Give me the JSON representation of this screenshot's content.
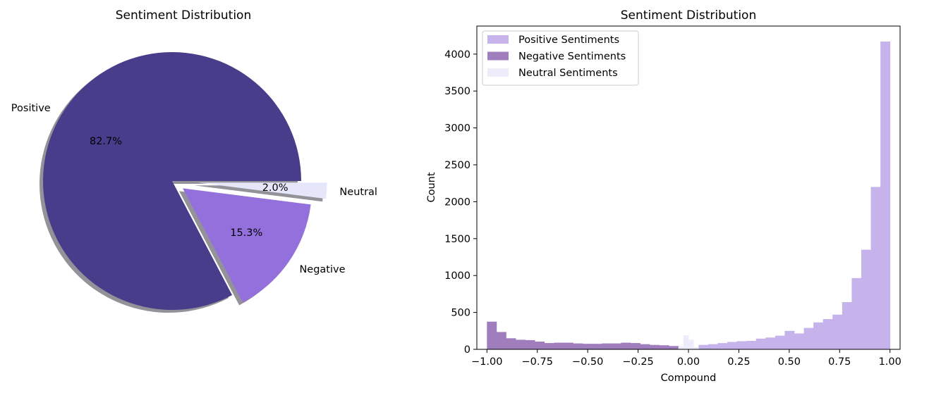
{
  "chart_data": [
    {
      "type": "pie",
      "title": "Sentiment Distribution",
      "slices": [
        {
          "label": "Positive",
          "value": 82.7,
          "pct_label": "82.7%",
          "color": "#483d8b",
          "explode": 0.0
        },
        {
          "label": "Negative",
          "value": 15.3,
          "pct_label": "15.3%",
          "color": "#9370db",
          "explode": 0.1
        },
        {
          "label": "Neutral",
          "value": 2.0,
          "pct_label": "2.0%",
          "color": "#e6e6fa",
          "explode": 0.2
        }
      ],
      "shadow": true,
      "start_angle_deg": 0
    },
    {
      "type": "histogram",
      "title": "Sentiment Distribution",
      "xlabel": "Compound",
      "ylabel": "Count",
      "xlim": [
        -1.05,
        1.05
      ],
      "ylim": [
        0,
        4380
      ],
      "xticks": [
        "−1.00",
        "−0.75",
        "−0.50",
        "−0.25",
        "0.00",
        "0.25",
        "0.50",
        "0.75",
        "1.00"
      ],
      "xtick_values": [
        -1.0,
        -0.75,
        -0.5,
        -0.25,
        0.0,
        0.25,
        0.5,
        0.75,
        1.0
      ],
      "yticks": [
        "0",
        "500",
        "1000",
        "1500",
        "2000",
        "2500",
        "3000",
        "3500",
        "4000"
      ],
      "ytick_values": [
        0,
        500,
        1000,
        1500,
        2000,
        2500,
        3000,
        3500,
        4000
      ],
      "legend_position": "top-left",
      "series": [
        {
          "name": "Positive Sentiments",
          "color": "#c6b3eb",
          "bin_start": 0.05,
          "bin_end": 1.0,
          "counts": [
            60,
            70,
            85,
            100,
            110,
            115,
            145,
            160,
            185,
            250,
            215,
            290,
            365,
            410,
            470,
            640,
            965,
            1350,
            2200,
            4170
          ]
        },
        {
          "name": "Negative Sentiments",
          "color": "#a07dbd",
          "bin_start": -1.0,
          "bin_end": -0.05,
          "counts": [
            375,
            235,
            150,
            130,
            125,
            105,
            85,
            90,
            90,
            80,
            75,
            75,
            80,
            80,
            90,
            85,
            70,
            60,
            55,
            45
          ]
        },
        {
          "name": "Neutral Sentiments",
          "color": "#eeecfa",
          "bin_start": -0.05,
          "bin_end": 0.05,
          "counts": [
            40,
            190,
            130,
            30
          ]
        }
      ]
    }
  ]
}
